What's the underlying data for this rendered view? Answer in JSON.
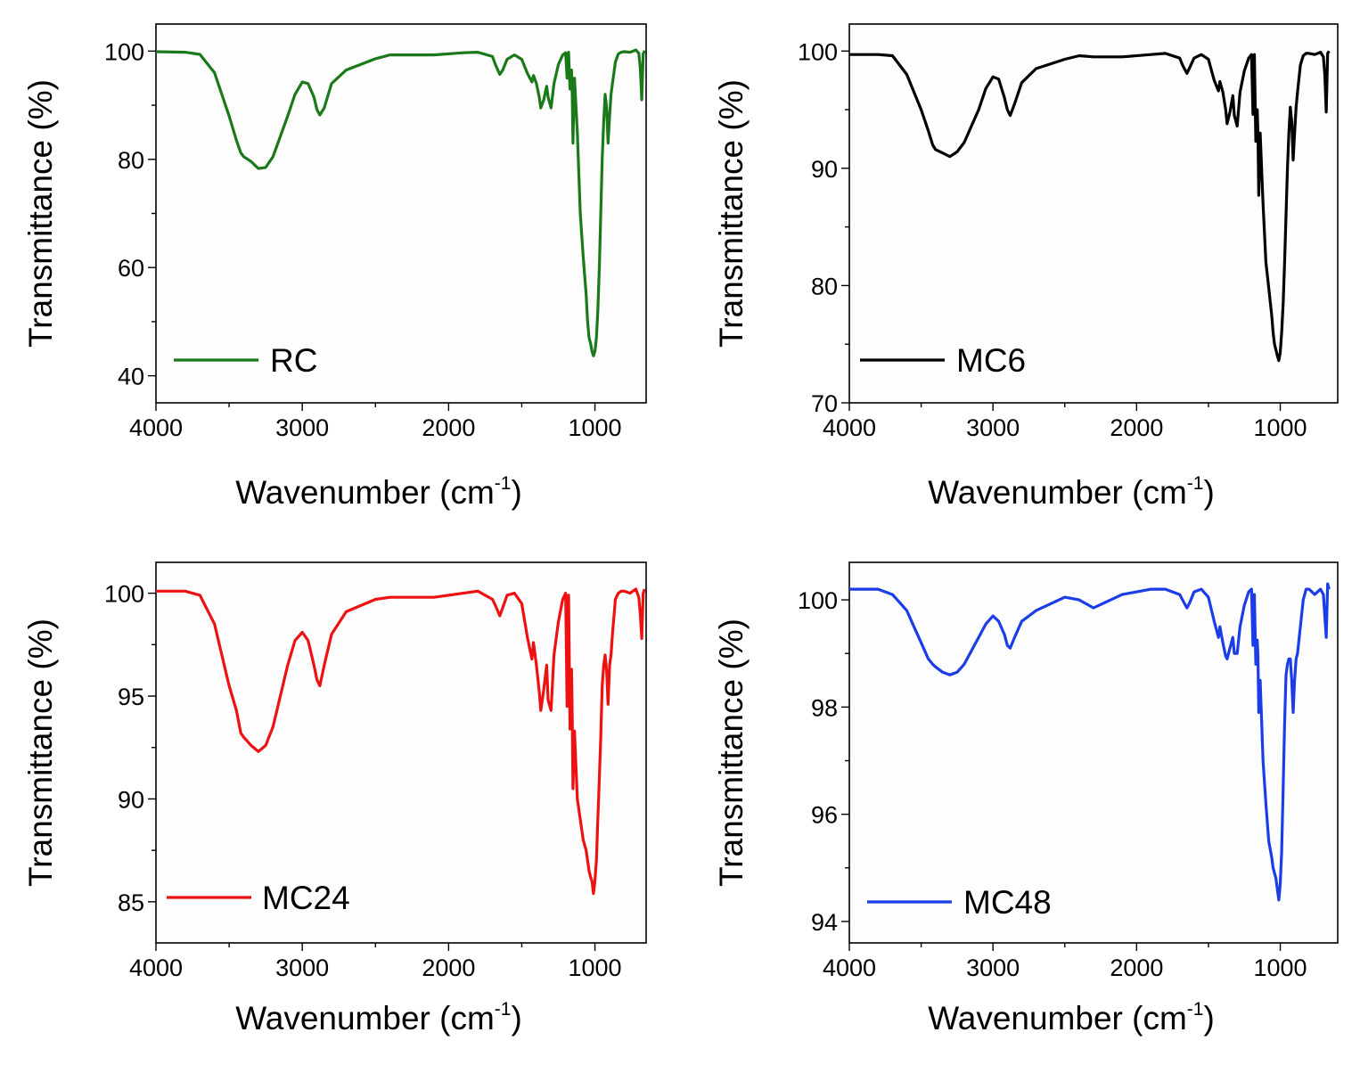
{
  "chart_data": [
    {
      "type": "line",
      "xlabel": "Wavenumber (cm",
      "xlabel_sup": "-1",
      "xlabel_close": ")",
      "ylabel": "Transmittance (%)",
      "xlim": [
        4000,
        650
      ],
      "ylim": [
        35,
        105
      ],
      "xticks": [
        4000,
        3000,
        2000,
        1000
      ],
      "yticks": [
        40,
        60,
        80,
        100
      ],
      "grid": false,
      "legend_position": "bottom-left",
      "series": [
        {
          "name": "RC",
          "color": "#1a7a1a",
          "x": [
            4000,
            3800,
            3700,
            3600,
            3550,
            3500,
            3450,
            3420,
            3400,
            3350,
            3300,
            3250,
            3200,
            3100,
            3050,
            3000,
            2960,
            2920,
            2900,
            2880,
            2850,
            2800,
            2700,
            2500,
            2400,
            2300,
            2100,
            1900,
            1800,
            1700,
            1680,
            1650,
            1630,
            1600,
            1550,
            1500,
            1460,
            1430,
            1420,
            1400,
            1380,
            1370,
            1350,
            1330,
            1320,
            1300,
            1280,
            1250,
            1220,
            1200,
            1190,
            1180,
            1170,
            1160,
            1155,
            1150,
            1140,
            1120,
            1100,
            1080,
            1060,
            1050,
            1040,
            1030,
            1020,
            1010,
            1000,
            990,
            980,
            970,
            960,
            950,
            940,
            930,
            920,
            910,
            900,
            890,
            880,
            860,
            840,
            820,
            800,
            760,
            720,
            700,
            690,
            680,
            670,
            660
          ],
          "y": [
            99.9,
            99.8,
            99.4,
            96,
            92,
            88,
            83.5,
            81.2,
            80.5,
            79.6,
            78.3,
            78.5,
            80.5,
            88,
            92,
            94.3,
            94,
            91.5,
            89.2,
            88.2,
            89.5,
            94,
            96.5,
            98.6,
            99.3,
            99.3,
            99.3,
            99.7,
            99.8,
            99,
            97.5,
            95.7,
            96.5,
            98.5,
            99.3,
            98.5,
            95.8,
            94.3,
            95.5,
            94,
            91.5,
            89.5,
            91,
            93.5,
            91.5,
            89.5,
            94,
            97.5,
            99.3,
            99.7,
            95,
            99.8,
            93,
            96.5,
            92,
            83,
            95,
            85,
            70,
            62,
            55,
            50,
            47,
            46,
            44.5,
            43.7,
            44.5,
            47,
            52,
            60,
            70,
            80,
            87,
            92,
            89.5,
            83,
            88,
            92,
            94,
            98,
            99.5,
            99.8,
            99.9,
            99.8,
            100.2,
            99.6,
            97,
            91,
            99.5,
            100.1
          ]
        }
      ]
    },
    {
      "type": "line",
      "xlabel": "Wavenumber (cm",
      "xlabel_sup": "-1",
      "xlabel_close": ")",
      "ylabel": "Transmittance (%)",
      "xlim": [
        4000,
        600
      ],
      "ylim": [
        70,
        102.3
      ],
      "xticks": [
        4000,
        3000,
        2000,
        1000
      ],
      "yticks": [
        70,
        80,
        90,
        100
      ],
      "grid": false,
      "legend_position": "bottom-left",
      "series": [
        {
          "name": "MC6",
          "color": "#000000",
          "x": [
            4000,
            3800,
            3700,
            3600,
            3550,
            3500,
            3450,
            3420,
            3400,
            3350,
            3300,
            3250,
            3200,
            3100,
            3050,
            3000,
            2960,
            2920,
            2900,
            2880,
            2850,
            2800,
            2700,
            2500,
            2400,
            2300,
            2100,
            1900,
            1800,
            1700,
            1680,
            1650,
            1630,
            1600,
            1550,
            1500,
            1460,
            1430,
            1420,
            1400,
            1380,
            1370,
            1350,
            1330,
            1320,
            1300,
            1280,
            1250,
            1220,
            1200,
            1190,
            1180,
            1170,
            1160,
            1155,
            1150,
            1140,
            1120,
            1100,
            1080,
            1060,
            1050,
            1040,
            1030,
            1020,
            1010,
            1000,
            990,
            980,
            970,
            960,
            950,
            940,
            930,
            920,
            910,
            900,
            890,
            880,
            860,
            840,
            820,
            800,
            760,
            720,
            700,
            690,
            680,
            670,
            660
          ],
          "y": [
            99.7,
            99.7,
            99.6,
            98,
            96.5,
            95,
            93.2,
            92,
            91.6,
            91.3,
            91,
            91.4,
            92.2,
            95,
            96.8,
            97.8,
            97.6,
            96,
            95,
            94.5,
            95.5,
            97.3,
            98.5,
            99.3,
            99.6,
            99.5,
            99.5,
            99.7,
            99.8,
            99.4,
            98.8,
            98.1,
            98.6,
            99.4,
            99.7,
            99.3,
            97.5,
            96.6,
            97.4,
            96.5,
            95,
            93.8,
            94.8,
            96.2,
            94.5,
            93.6,
            96.5,
            98.3,
            99.4,
            99.7,
            94.6,
            99.7,
            92.3,
            95,
            93,
            87.7,
            93,
            87,
            82,
            79.8,
            77.5,
            76,
            75,
            74.5,
            74,
            73.6,
            74.3,
            76,
            78.5,
            82,
            86,
            90,
            93,
            95.2,
            94,
            90.7,
            93,
            95.2,
            96.5,
            98.8,
            99.6,
            99.8,
            99.8,
            99.7,
            99.9,
            99.5,
            98,
            94.8,
            99.8,
            100
          ]
        }
      ]
    },
    {
      "type": "line",
      "xlabel": "Wavenumber (cm",
      "xlabel_sup": "-1",
      "xlabel_close": ")",
      "ylabel": "Transmittance (%)",
      "xlim": [
        4000,
        650
      ],
      "ylim": [
        83,
        101.5
      ],
      "xticks": [
        4000,
        3000,
        2000,
        1000
      ],
      "yticks": [
        85,
        90,
        95,
        100
      ],
      "grid": false,
      "legend_position": "bottom-left",
      "series": [
        {
          "name": "MC24",
          "color": "#ee1111",
          "x": [
            4000,
            3800,
            3700,
            3600,
            3550,
            3500,
            3450,
            3420,
            3400,
            3350,
            3300,
            3250,
            3200,
            3100,
            3050,
            3000,
            2960,
            2920,
            2900,
            2880,
            2850,
            2800,
            2700,
            2500,
            2400,
            2300,
            2100,
            1900,
            1800,
            1700,
            1680,
            1650,
            1630,
            1600,
            1550,
            1500,
            1460,
            1430,
            1420,
            1400,
            1380,
            1370,
            1350,
            1330,
            1320,
            1300,
            1280,
            1250,
            1220,
            1200,
            1190,
            1180,
            1170,
            1160,
            1155,
            1150,
            1140,
            1120,
            1100,
            1080,
            1060,
            1050,
            1040,
            1030,
            1020,
            1010,
            1000,
            990,
            980,
            970,
            960,
            950,
            940,
            930,
            920,
            910,
            900,
            890,
            880,
            860,
            840,
            820,
            800,
            760,
            720,
            700,
            690,
            680,
            670,
            660
          ],
          "y": [
            100.1,
            100.1,
            99.9,
            98.5,
            97,
            95.5,
            94.3,
            93.2,
            93,
            92.6,
            92.3,
            92.6,
            93.5,
            96.5,
            97.7,
            98.1,
            97.7,
            96.5,
            95.8,
            95.5,
            96.5,
            98,
            99.1,
            99.7,
            99.8,
            99.8,
            99.8,
            100,
            100.1,
            99.7,
            99.4,
            98.9,
            99.3,
            99.9,
            100,
            99.5,
            97.8,
            96.8,
            97.6,
            96.5,
            95.2,
            94.3,
            95.3,
            96.5,
            94.8,
            94.3,
            97,
            98.6,
            99.7,
            100,
            94.5,
            99.9,
            93.4,
            96.3,
            94,
            90.5,
            93.3,
            90,
            89,
            88,
            87.5,
            87,
            86.5,
            86.2,
            86,
            85.4,
            86,
            87,
            89,
            91,
            93,
            95.5,
            96.5,
            97,
            96.2,
            94.6,
            96.5,
            97,
            98,
            99.7,
            100,
            100.1,
            100.1,
            100,
            100.2,
            99.8,
            99,
            97.8,
            100,
            100.2
          ]
        }
      ]
    },
    {
      "type": "line",
      "xlabel": "Wavenumber (cm",
      "xlabel_sup": "-1",
      "xlabel_close": ")",
      "ylabel": "Transmittance (%)",
      "xlim": [
        4000,
        600
      ],
      "ylim": [
        93.6,
        100.7
      ],
      "xticks": [
        4000,
        3000,
        2000,
        1000
      ],
      "yticks": [
        94,
        96,
        98,
        100
      ],
      "grid": false,
      "legend_position": "bottom-left",
      "series": [
        {
          "name": "MC48",
          "color": "#1a3de8",
          "x": [
            4000,
            3800,
            3700,
            3600,
            3550,
            3500,
            3450,
            3420,
            3400,
            3350,
            3300,
            3250,
            3200,
            3100,
            3050,
            3000,
            2960,
            2920,
            2900,
            2880,
            2850,
            2800,
            2700,
            2500,
            2400,
            2300,
            2100,
            1900,
            1800,
            1700,
            1680,
            1650,
            1630,
            1600,
            1550,
            1500,
            1460,
            1430,
            1420,
            1400,
            1380,
            1370,
            1350,
            1330,
            1320,
            1300,
            1280,
            1250,
            1220,
            1200,
            1190,
            1180,
            1170,
            1160,
            1155,
            1150,
            1140,
            1120,
            1100,
            1080,
            1060,
            1050,
            1040,
            1030,
            1020,
            1010,
            1000,
            990,
            980,
            970,
            960,
            950,
            940,
            930,
            920,
            910,
            900,
            890,
            880,
            860,
            840,
            820,
            800,
            760,
            720,
            700,
            690,
            680,
            670,
            660
          ],
          "y": [
            100.2,
            100.2,
            100.1,
            99.8,
            99.5,
            99.2,
            98.9,
            98.8,
            98.75,
            98.65,
            98.6,
            98.65,
            98.8,
            99.3,
            99.55,
            99.7,
            99.6,
            99.35,
            99.15,
            99.1,
            99.3,
            99.6,
            99.8,
            100.05,
            100,
            99.85,
            100.1,
            100.2,
            100.2,
            100.1,
            100,
            99.85,
            99.95,
            100.15,
            100.2,
            100.05,
            99.6,
            99.3,
            99.5,
            99.2,
            98.95,
            98.9,
            99.1,
            99.3,
            99,
            99,
            99.5,
            99.9,
            100.15,
            100.2,
            99.15,
            100.1,
            98.8,
            99.25,
            98.95,
            97.9,
            98.5,
            97,
            96.2,
            95.5,
            95.2,
            95,
            94.9,
            94.8,
            94.6,
            94.4,
            94.7,
            95.3,
            96.5,
            97.7,
            98.6,
            98.8,
            98.9,
            98.9,
            98.5,
            97.9,
            98.5,
            98.9,
            99,
            99.5,
            100,
            100.2,
            100.2,
            100.1,
            100.2,
            100.1,
            99.7,
            99.3,
            100.3,
            100.2
          ]
        }
      ]
    }
  ]
}
